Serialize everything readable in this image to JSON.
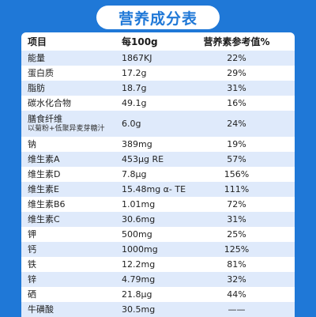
{
  "title": "营养成分表",
  "table": {
    "headers": [
      "项目",
      "每100g",
      "营养素参考值%"
    ],
    "rows": [
      {
        "name": "能量",
        "amount": "1867KJ",
        "pct": "22%"
      },
      {
        "name": "蛋白质",
        "amount": "17.2g",
        "pct": "29%"
      },
      {
        "name": "脂肪",
        "amount": "18.7g",
        "pct": "31%"
      },
      {
        "name": "碳水化合物",
        "amount": "49.1g",
        "pct": "16%"
      },
      {
        "name": "膳食纤维",
        "sub": "以菊粉+低聚异麦芽糖汁",
        "amount": "6.0g",
        "pct": "24%"
      },
      {
        "name": "钠",
        "amount": "389mg",
        "pct": "19%"
      },
      {
        "name": "维生素A",
        "amount": "453μg RE",
        "pct": "57%"
      },
      {
        "name": "维生素D",
        "amount": "7.8μg",
        "pct": "156%"
      },
      {
        "name": "维生素E",
        "amount": "15.48mg α- TE",
        "pct": "111%"
      },
      {
        "name": "维生素B6",
        "amount": "1.01mg",
        "pct": "72%"
      },
      {
        "name": "维生素C",
        "amount": "30.6mg",
        "pct": "31%"
      },
      {
        "name": "钾",
        "amount": "500mg",
        "pct": "25%"
      },
      {
        "name": "钙",
        "amount": "1000mg",
        "pct": "125%"
      },
      {
        "name": "铁",
        "amount": "12.2mg",
        "pct": "81%"
      },
      {
        "name": "锌",
        "amount": "4.79mg",
        "pct": "32%"
      },
      {
        "name": "硒",
        "amount": "21.8μg",
        "pct": "44%"
      },
      {
        "name": "牛磺酸",
        "amount": "30.5mg",
        "pct": "——"
      }
    ]
  },
  "colors": {
    "background": "#1f78d7",
    "row_alt": "#dfeafb",
    "card": "#ffffff"
  }
}
